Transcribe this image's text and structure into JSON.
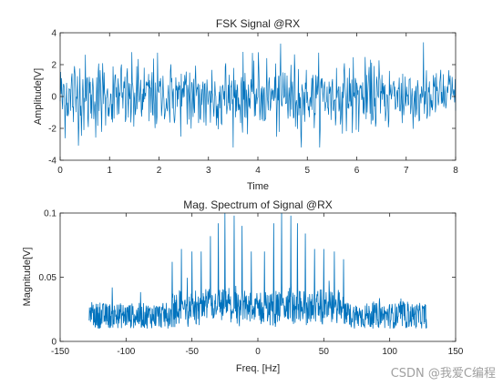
{
  "chart_data": [
    {
      "type": "line",
      "title": "FSK Signal @RX",
      "xlabel": "Time",
      "ylabel": "Amplitude[V]",
      "xlim": [
        0,
        8
      ],
      "ylim": [
        -4,
        4
      ],
      "xticks": [
        0,
        1,
        2,
        3,
        4,
        5,
        6,
        7,
        8
      ],
      "yticks": [
        -4,
        -2,
        0,
        2,
        4
      ],
      "grid": false,
      "series": [
        {
          "color": "#0072BD",
          "n_points": 800,
          "amplitude_range": [
            -3.2,
            3.4
          ]
        }
      ]
    },
    {
      "type": "line",
      "title": "Mag. Spectrum of Signal @RX",
      "xlabel": "Freq. [Hz]",
      "ylabel": "Magnitude[V]",
      "xlim": [
        -150,
        150
      ],
      "ylim": [
        0,
        0.1
      ],
      "xticks": [
        -150,
        -100,
        -50,
        0,
        50,
        100,
        150
      ],
      "yticks": [
        0,
        0.05,
        0.1
      ],
      "grid": false,
      "series": [
        {
          "color": "#0072BD",
          "x_range": [
            -128,
            128
          ],
          "noise_floor": [
            0.01,
            0.03
          ],
          "raised_band": [
            -65,
            65
          ],
          "peaks": [
            {
              "x": -65,
              "y": 0.062
            },
            {
              "x": -58,
              "y": 0.072
            },
            {
              "x": -50,
              "y": 0.07
            },
            {
              "x": -43,
              "y": 0.07
            },
            {
              "x": -36,
              "y": 0.082
            },
            {
              "x": -30,
              "y": 0.092
            },
            {
              "x": -25,
              "y": 0.1
            },
            {
              "x": -18,
              "y": 0.098
            },
            {
              "x": -12,
              "y": 0.09
            },
            {
              "x": -5,
              "y": 0.07
            },
            {
              "x": 5,
              "y": 0.07
            },
            {
              "x": 12,
              "y": 0.092
            },
            {
              "x": 18,
              "y": 0.1
            },
            {
              "x": 25,
              "y": 0.098
            },
            {
              "x": 30,
              "y": 0.092
            },
            {
              "x": 36,
              "y": 0.084
            },
            {
              "x": 43,
              "y": 0.072
            },
            {
              "x": 50,
              "y": 0.072
            },
            {
              "x": 58,
              "y": 0.07
            },
            {
              "x": 65,
              "y": 0.064
            }
          ]
        }
      ]
    }
  ],
  "watermark": "CSDN @我爱C编程"
}
